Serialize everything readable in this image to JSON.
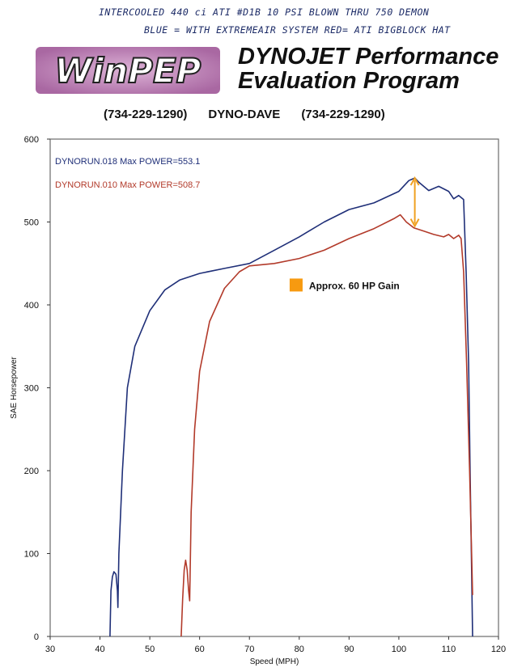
{
  "header": {
    "handwritten_line1": "INTERCOOLED 440 ci ATI #D1B 10 PSI BLOWN THRU 750 DEMON",
    "handwritten_line2": "BLUE = WITH EXTREMEAIR SYSTEM RED= ATI BIGBLOCK HAT",
    "logo_text": "WinPEP",
    "title_line1": "DYNOJET Performance",
    "title_line2": "Evaluation Program",
    "phone_left": "(734-229-1290)",
    "shop_name": "DYNO-DAVE",
    "phone_right": "(734-229-1290)"
  },
  "colors": {
    "blue_run": "#1f2f78",
    "red_run": "#b23a2a",
    "arrow": "#f0a020",
    "frame": "#6a6a6a"
  },
  "chart_data": {
    "type": "line",
    "xlabel": "Speed (MPH)",
    "ylabel": "SAE Horsepower",
    "xlim": [
      30,
      120
    ],
    "ylim": [
      0,
      600
    ],
    "x_ticks": [
      30,
      40,
      50,
      60,
      70,
      80,
      90,
      100,
      110,
      120
    ],
    "y_ticks": [
      0,
      100,
      200,
      300,
      400,
      500,
      600
    ],
    "legend_placement": "top-left",
    "grid": false,
    "series": [
      {
        "name": "DYNORUN.018",
        "label": "DYNORUN.018  Max POWER=553.1",
        "color": "#1f2f78",
        "points": [
          [
            42,
            0
          ],
          [
            42.2,
            55
          ],
          [
            42.5,
            72
          ],
          [
            42.8,
            78
          ],
          [
            43.2,
            75
          ],
          [
            43.5,
            55
          ],
          [
            43.6,
            35
          ],
          [
            43.8,
            100
          ],
          [
            44.5,
            200
          ],
          [
            45.5,
            300
          ],
          [
            47,
            350
          ],
          [
            50,
            393
          ],
          [
            53,
            418
          ],
          [
            56,
            430
          ],
          [
            60,
            438
          ],
          [
            65,
            444
          ],
          [
            70,
            450
          ],
          [
            75,
            466
          ],
          [
            80,
            482
          ],
          [
            85,
            500
          ],
          [
            90,
            515
          ],
          [
            95,
            523
          ],
          [
            100,
            537
          ],
          [
            102,
            550
          ],
          [
            103.2,
            553.1
          ],
          [
            104,
            548
          ],
          [
            106,
            538
          ],
          [
            108,
            543
          ],
          [
            110,
            537
          ],
          [
            111,
            528
          ],
          [
            112,
            532
          ],
          [
            113,
            527
          ],
          [
            113.5,
            440
          ],
          [
            114,
            330
          ],
          [
            114.3,
            200
          ],
          [
            114.6,
            80
          ],
          [
            114.8,
            0
          ]
        ]
      },
      {
        "name": "DYNORUN.010",
        "label": "DYNORUN.010  Max POWER=508.7",
        "color": "#b23a2a",
        "points": [
          [
            56.3,
            0
          ],
          [
            56.6,
            45
          ],
          [
            56.9,
            80
          ],
          [
            57.2,
            92
          ],
          [
            57.5,
            80
          ],
          [
            57.8,
            55
          ],
          [
            58,
            43
          ],
          [
            58.3,
            150
          ],
          [
            59,
            250
          ],
          [
            60,
            320
          ],
          [
            62,
            380
          ],
          [
            65,
            420
          ],
          [
            68,
            440
          ],
          [
            70,
            447
          ],
          [
            75,
            450
          ],
          [
            80,
            456
          ],
          [
            85,
            466
          ],
          [
            90,
            480
          ],
          [
            95,
            492
          ],
          [
            99,
            504
          ],
          [
            100.3,
            508.7
          ],
          [
            101.5,
            500
          ],
          [
            103,
            493
          ],
          [
            105,
            489
          ],
          [
            107,
            485
          ],
          [
            109,
            482
          ],
          [
            110,
            485
          ],
          [
            111,
            480
          ],
          [
            112,
            484
          ],
          [
            112.5,
            480
          ],
          [
            113,
            440
          ],
          [
            113.6,
            330
          ],
          [
            114.2,
            200
          ],
          [
            114.6,
            100
          ],
          [
            114.8,
            50
          ]
        ]
      }
    ],
    "annotations": [
      {
        "type": "arrow",
        "x": 103.2,
        "y_from": 495,
        "y_to": 553.1,
        "color": "#f0a020"
      },
      {
        "type": "label",
        "text": "Approx. 60 HP Gain",
        "marker_color": "#f79a10",
        "x": 81,
        "y": 423
      }
    ]
  }
}
